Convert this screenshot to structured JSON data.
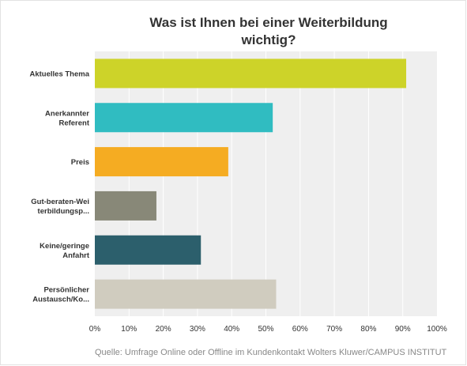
{
  "chart_data": {
    "type": "bar",
    "orientation": "horizontal",
    "title": "Was ist Ihnen bei einer Weiterbildung wichtig?",
    "title_lines": [
      "Was ist Ihnen bei einer Weiterbildung",
      "wichtig?"
    ],
    "categories": [
      "Aktuelles Thema",
      "Anerkannter Referent",
      "Preis",
      "Gut-beraten-Weiterbildungsp...",
      "Keine/geringe Anfahrt",
      "Persönlicher Austausch/Ko..."
    ],
    "category_label_lines": [
      [
        "Aktuelles Thema"
      ],
      [
        "Anerkannter",
        "Referent"
      ],
      [
        "Preis"
      ],
      [
        "Gut-beraten-Wei",
        "terbildungsp..."
      ],
      [
        "Keine/geringe",
        "Anfahrt"
      ],
      [
        "Persönlicher",
        "Austausch/Ko..."
      ]
    ],
    "values": [
      91,
      52,
      39,
      18,
      31,
      53
    ],
    "unit": "%",
    "xlim": [
      0,
      100
    ],
    "x_ticks": [
      "0%",
      "10%",
      "20%",
      "30%",
      "40%",
      "50%",
      "60%",
      "70%",
      "80%",
      "90%",
      "100%"
    ],
    "grid": true,
    "colors": [
      "#cdd329",
      "#30bcc1",
      "#f5ac22",
      "#888878",
      "#2c5f6c",
      "#d0ccbf"
    ],
    "plot_background": "#efefef",
    "grid_color": "#ffffff"
  },
  "source": "Quelle: Umfrage Online oder Offline im Kundenkontakt Wolters Kluwer/CAMPUS INSTITUT"
}
